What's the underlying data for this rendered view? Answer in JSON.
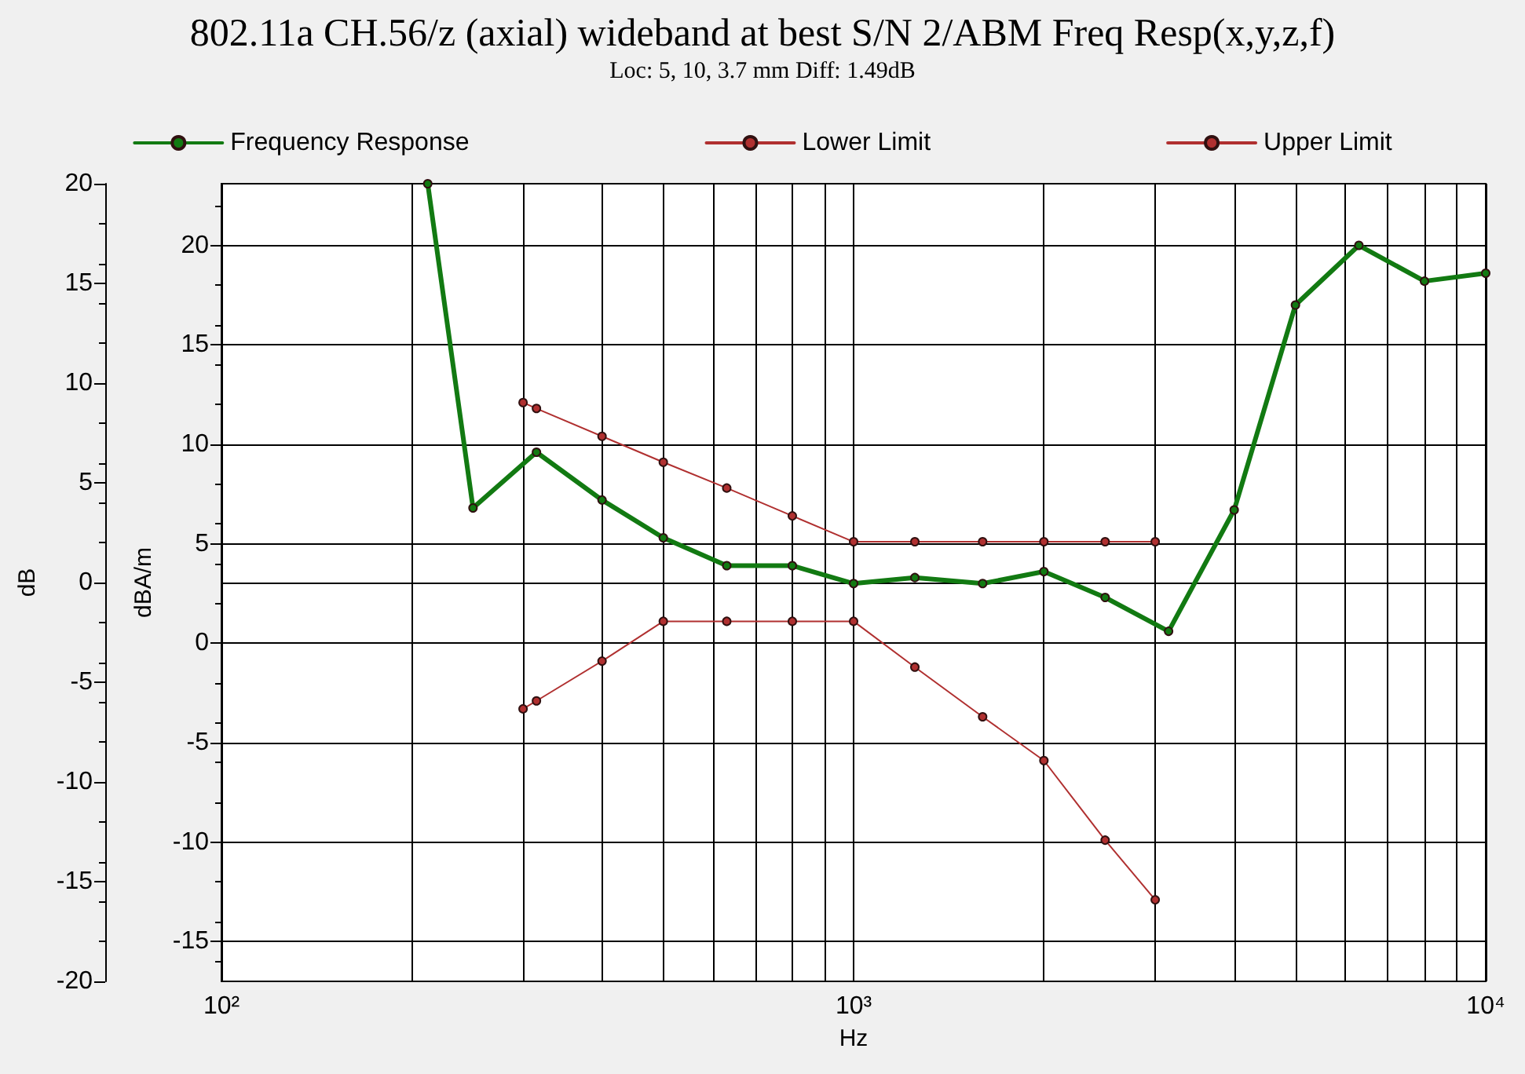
{
  "chart_data": {
    "type": "line",
    "title": "802.11a CH.56/z (axial) wideband at best S/N 2/ABM Freq Resp(x,y,z,f)",
    "subtitle": "Loc: 5, 10, 3.7 mm Diff: 1.49dB",
    "xlabel": "Hz",
    "ylabel": "dB",
    "y2label": "dBA/m",
    "log": "x",
    "grid": true,
    "legend": "top",
    "marker": "circle",
    "line_style": "solid",
    "xlim": [
      100,
      10000
    ],
    "xticks": [
      {
        "value": 100,
        "label": "10²"
      },
      {
        "value": 200,
        "label": null
      },
      {
        "value": 300,
        "label": null
      },
      {
        "value": 400,
        "label": null
      },
      {
        "value": 500,
        "label": null
      },
      {
        "value": 600,
        "label": null
      },
      {
        "value": 700,
        "label": null
      },
      {
        "value": 800,
        "label": null
      },
      {
        "value": 900,
        "label": null
      },
      {
        "value": 1000,
        "label": "10³"
      },
      {
        "value": 2000,
        "label": null
      },
      {
        "value": 3000,
        "label": null
      },
      {
        "value": 4000,
        "label": null
      },
      {
        "value": 5000,
        "label": null
      },
      {
        "value": 6000,
        "label": null
      },
      {
        "value": 7000,
        "label": null
      },
      {
        "value": 8000,
        "label": null
      },
      {
        "value": 9000,
        "label": null
      },
      {
        "value": 10000,
        "label": "10⁴"
      }
    ],
    "ylim": [
      -20,
      20
    ],
    "yticks": [
      -20,
      -15,
      -10,
      -5,
      0,
      5,
      10,
      15,
      20
    ],
    "y2lim": [
      -17,
      23.1
    ],
    "y2ticks": [
      -15,
      -10,
      -5,
      0,
      5,
      10,
      15,
      20
    ],
    "series": [
      {
        "name": "Frequency Response",
        "color": "#127a12",
        "axis": "y2",
        "x": [
          212,
          250,
          315,
          400,
          500,
          630,
          800,
          1000,
          1250,
          1600,
          2000,
          2500,
          3150,
          4000,
          5000,
          6300,
          8000,
          10000
        ],
        "values": [
          23.1,
          6.8,
          9.6,
          7.2,
          5.3,
          3.9,
          3.9,
          3.0,
          3.3,
          3.0,
          3.6,
          2.3,
          0.6,
          6.7,
          17.0,
          20.0,
          18.2,
          18.6
        ]
      },
      {
        "name": "Lower Limit",
        "color": "#b03030",
        "axis": "y2",
        "x": [
          300,
          315,
          400,
          500,
          630,
          800,
          1000,
          1250,
          1600,
          2000,
          2500,
          3000
        ],
        "values": [
          -3.3,
          -2.9,
          -0.9,
          1.1,
          1.1,
          1.1,
          1.1,
          -1.2,
          -3.7,
          -5.9,
          -9.9,
          -12.9
        ]
      },
      {
        "name": "Upper Limit",
        "color": "#b03030",
        "axis": "y2",
        "x": [
          300,
          315,
          400,
          500,
          630,
          800,
          1000,
          1250,
          1600,
          2000,
          2500,
          3000
        ],
        "values": [
          12.1,
          11.8,
          10.4,
          9.1,
          7.8,
          6.4,
          5.1,
          5.1,
          5.1,
          5.1,
          5.1,
          5.1
        ]
      }
    ]
  }
}
